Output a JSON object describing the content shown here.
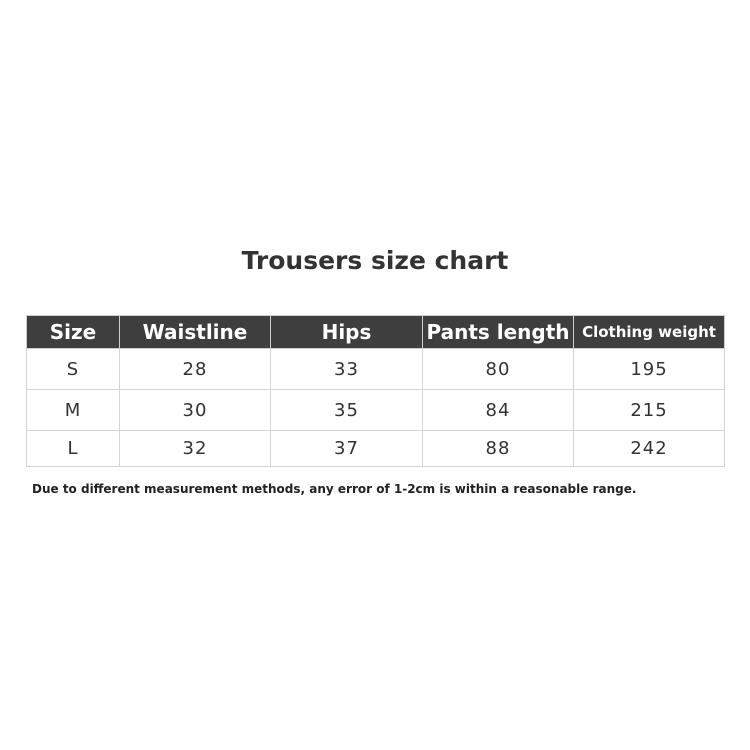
{
  "title": "Trousers size chart",
  "table": {
    "headers": [
      "Size",
      "Waistline",
      "Hips",
      "Pants length",
      "Clothing weight"
    ],
    "rows": [
      [
        "S",
        "28",
        "33",
        "80",
        "195"
      ],
      [
        "M",
        "30",
        "35",
        "84",
        "215"
      ],
      [
        "L",
        "32",
        "37",
        "88",
        "242"
      ]
    ]
  },
  "note": "Due to different measurement methods, any error of 1-2cm is within a reasonable range.",
  "colors": {
    "header_bg": "#3e3e3e",
    "header_text": "#ffffff",
    "border": "#d4d4d4"
  }
}
